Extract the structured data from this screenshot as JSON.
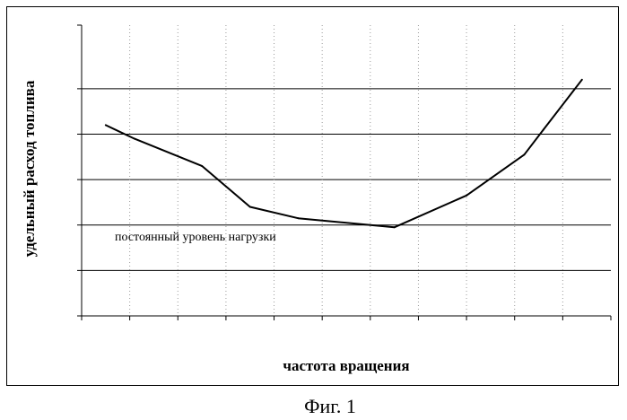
{
  "chart_data": {
    "type": "line",
    "title": "",
    "xlabel": "частота вращения",
    "ylabel": "удельный расход топлива",
    "annotation": "постоянный уровень нагрузки",
    "x": [
      0.05,
      0.11,
      0.25,
      0.35,
      0.45,
      0.65,
      0.8,
      0.92,
      0.96,
      1.04
    ],
    "y": [
      4.2,
      3.9,
      3.3,
      2.4,
      2.15,
      1.95,
      2.65,
      3.55,
      4.1,
      5.2
    ],
    "xlim": [
      0,
      1.1
    ],
    "ylim": [
      0,
      6.4
    ],
    "yticks": [
      0,
      1,
      2,
      3,
      4,
      5
    ],
    "grid": true,
    "line_color": "#000000"
  },
  "figure": {
    "caption": "Фиг. 1"
  }
}
